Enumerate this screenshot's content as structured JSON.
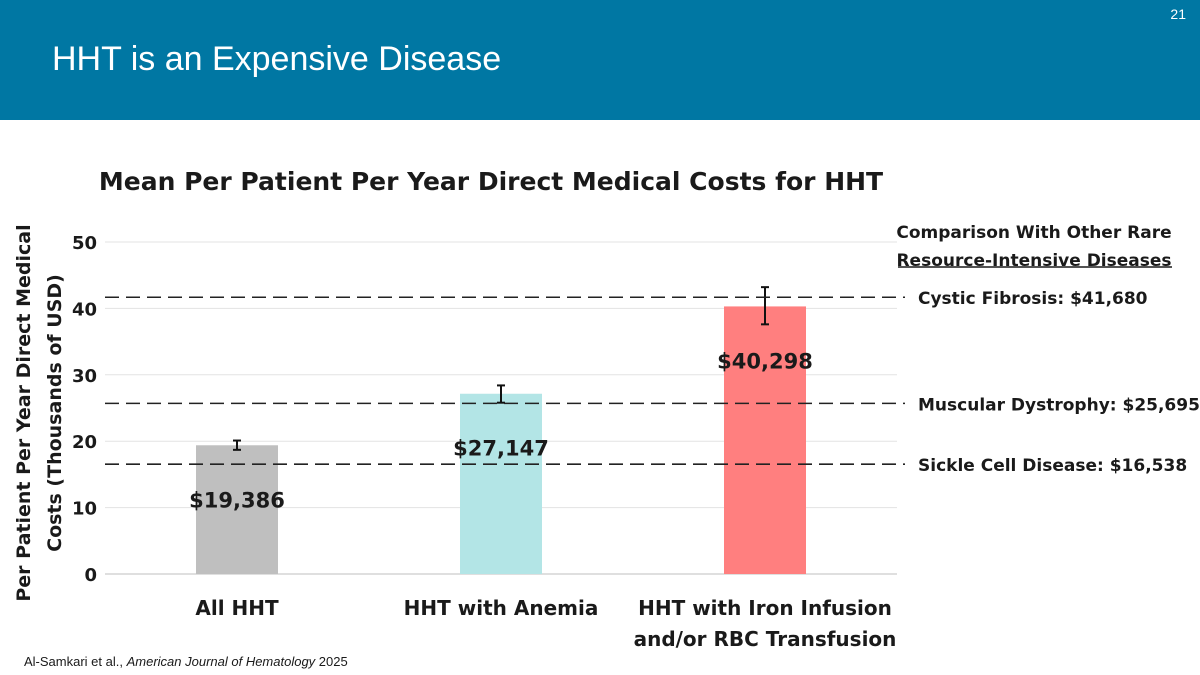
{
  "slide": {
    "title": "HHT is an Expensive Disease",
    "number": "21"
  },
  "citation": {
    "authors": "Al-Samkari et al., ",
    "journal": "American Journal of Hematology",
    "year": " 2025"
  },
  "chart_data": {
    "type": "bar",
    "title": "Mean Per Patient Per Year Direct Medical Costs for HHT",
    "ylabel_lines": [
      "Per Patient Per Year Direct Medical",
      "Costs (Thousands of USD)"
    ],
    "ylim": [
      0,
      50
    ],
    "yticks": [
      0,
      10,
      20,
      30,
      40,
      50
    ],
    "grid": true,
    "categories": [
      [
        "All HHT"
      ],
      [
        "HHT with Anemia"
      ],
      [
        "HHT with Iron Infusion",
        "and/or RBC Transfusion"
      ]
    ],
    "values": [
      19.386,
      27.147,
      40.298
    ],
    "data_labels": [
      "$19,386",
      "$27,147",
      "$40,298"
    ],
    "error_bars": [
      [
        18.7,
        20.1
      ],
      [
        25.8,
        28.4
      ],
      [
        37.6,
        43.2
      ]
    ],
    "bar_colors": [
      "#bfbfbf",
      "#b3e5e6",
      "#ff7f7f"
    ],
    "comparison": {
      "heading_lines": [
        "Comparison With Other Rare",
        "Resource-Intensive Diseases"
      ],
      "references": [
        {
          "label": "Cystic Fibrosis: $41,680",
          "value": 41.68
        },
        {
          "label": "Muscular Dystrophy: $25,695",
          "value": 25.695
        },
        {
          "label": "Sickle Cell Disease: $16,538",
          "value": 16.538
        }
      ]
    }
  }
}
